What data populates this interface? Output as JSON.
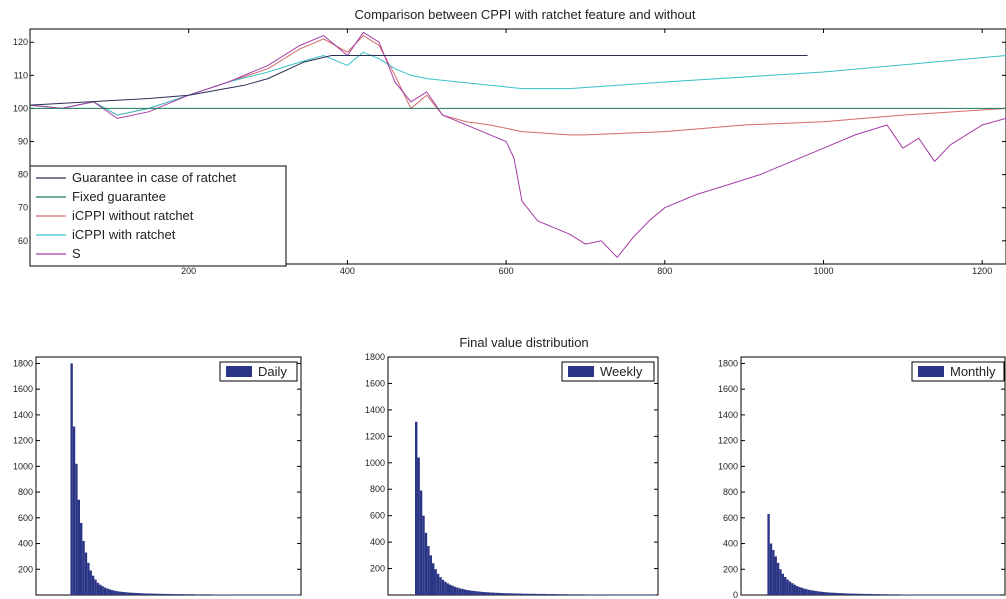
{
  "chart_data": [
    {
      "id": "cppi",
      "type": "line",
      "title": "Comparison between CPPI with ratchet feature and without",
      "xlabel": "",
      "ylabel": "",
      "xlim": [
        0,
        1230
      ],
      "ylim": [
        53,
        124
      ],
      "xticks": [
        200,
        400,
        600,
        800,
        1000,
        1200
      ],
      "yticks": [
        60,
        70,
        80,
        90,
        100,
        110,
        120
      ],
      "grid": false,
      "legend_position": "bottom-left",
      "series": [
        {
          "name": "Guarantee in case of ratchet",
          "color": "#2a2f55",
          "x": [
            0,
            150,
            200,
            270,
            300,
            345,
            380,
            400,
            430,
            980
          ],
          "y": [
            101,
            103,
            104,
            107,
            109,
            114,
            116,
            116,
            116,
            116
          ]
        },
        {
          "name": "Fixed guarantee",
          "color": "#1f7a5a",
          "x": [
            0,
            1230
          ],
          "y": [
            100,
            100
          ]
        },
        {
          "name": "iCPPI without ratchet",
          "color": "#d46a6a",
          "x": [
            0,
            40,
            80,
            110,
            150,
            200,
            250,
            300,
            340,
            370,
            400,
            420,
            440,
            460,
            480,
            500,
            520,
            550,
            580,
            620,
            680,
            700,
            800,
            900,
            1000,
            1100,
            1230
          ],
          "y": [
            101,
            100,
            102,
            98,
            100,
            104,
            108,
            112,
            118,
            121,
            117,
            122,
            119,
            110,
            100,
            104,
            98,
            96,
            95,
            93,
            92,
            92,
            93,
            95,
            96,
            98,
            100
          ]
        },
        {
          "name": "iCPPI with ratchet",
          "color": "#39c2c8",
          "x": [
            0,
            40,
            80,
            110,
            150,
            200,
            250,
            300,
            340,
            370,
            400,
            420,
            440,
            460,
            480,
            500,
            540,
            580,
            620,
            680,
            800,
            1000,
            1230
          ],
          "y": [
            101,
            100,
            102,
            98,
            100,
            104,
            108,
            111,
            114,
            116,
            113,
            117,
            115,
            112,
            110,
            109,
            108,
            107,
            106,
            106,
            108,
            111,
            116
          ]
        },
        {
          "name": "S",
          "color": "#a63ea6",
          "x": [
            0,
            40,
            80,
            110,
            150,
            200,
            250,
            300,
            340,
            370,
            400,
            420,
            440,
            460,
            480,
            500,
            520,
            540,
            560,
            580,
            600,
            610,
            620,
            640,
            660,
            680,
            700,
            720,
            740,
            760,
            780,
            800,
            840,
            880,
            920,
            960,
            1000,
            1040,
            1080,
            1100,
            1120,
            1140,
            1160,
            1180,
            1200,
            1230
          ],
          "y": [
            101,
            100,
            102,
            97,
            99,
            104,
            108,
            113,
            119,
            122,
            116,
            123,
            120,
            108,
            102,
            105,
            98,
            96,
            94,
            92,
            90,
            85,
            72,
            66,
            64,
            62,
            59,
            60,
            55,
            61,
            66,
            70,
            74,
            77,
            80,
            84,
            88,
            92,
            95,
            88,
            91,
            84,
            89,
            92,
            95,
            97
          ]
        }
      ]
    },
    {
      "id": "daily",
      "type": "bar",
      "legend": "Daily",
      "legend_color": "#2b3585",
      "legend_position": "top-right",
      "xlim": [
        0,
        1
      ],
      "ylim": [
        0,
        1850
      ],
      "yticks": [
        200,
        400,
        600,
        800,
        1000,
        1200,
        1400,
        1600,
        1800
      ],
      "bins_start": 0.13,
      "bin_width": 0.009,
      "values": [
        1800,
        1310,
        1020,
        740,
        560,
        420,
        330,
        250,
        190,
        150,
        120,
        95,
        80,
        68,
        58,
        50,
        44,
        38,
        34,
        30,
        27,
        25,
        23,
        21,
        19,
        18,
        17,
        16,
        15,
        14,
        13,
        12,
        12,
        11,
        11,
        10,
        10,
        9,
        9,
        9,
        8,
        8,
        8,
        7,
        7,
        7,
        7,
        6,
        6,
        6,
        6,
        6,
        5,
        5,
        5,
        5,
        5,
        5,
        5,
        4,
        4,
        4,
        4,
        4,
        4,
        4,
        4,
        4,
        4,
        3,
        3,
        3,
        3,
        3,
        3,
        3,
        3,
        3,
        3,
        3,
        3,
        3,
        3,
        3,
        3,
        3,
        3,
        3,
        3,
        3,
        3,
        3,
        3,
        3,
        3,
        3
      ]
    },
    {
      "id": "weekly",
      "type": "bar",
      "title": "Final value distribution",
      "legend": "Weekly",
      "legend_color": "#2b3585",
      "legend_position": "top-right",
      "xlim": [
        0,
        1
      ],
      "ylim": [
        0,
        1800
      ],
      "yticks": [
        200,
        400,
        600,
        800,
        1000,
        1200,
        1400,
        1600,
        1800
      ],
      "bins_start": 0.1,
      "bin_width": 0.009,
      "values": [
        1310,
        1040,
        790,
        600,
        470,
        370,
        300,
        240,
        195,
        160,
        135,
        115,
        100,
        88,
        78,
        70,
        62,
        56,
        50,
        46,
        42,
        38,
        35,
        32,
        30,
        28,
        26,
        24,
        22,
        21,
        20,
        19,
        18,
        17,
        16,
        15,
        14,
        14,
        13,
        13,
        12,
        12,
        11,
        11,
        10,
        10,
        10,
        9,
        9,
        9,
        8,
        8,
        8,
        8,
        7,
        7,
        7,
        7,
        6,
        6,
        6,
        6,
        6,
        5,
        5,
        5,
        5,
        5,
        5,
        5,
        4,
        4,
        4,
        4,
        4,
        4,
        4,
        4,
        4,
        4,
        4,
        3,
        3,
        3,
        3,
        3,
        3,
        3,
        3,
        3,
        3,
        3,
        3,
        3,
        3,
        3,
        3,
        3,
        3
      ]
    },
    {
      "id": "monthly",
      "type": "bar",
      "legend": "Monthly",
      "legend_color": "#2b3585",
      "legend_position": "top-right",
      "xlim": [
        0,
        1
      ],
      "ylim": [
        0,
        1850
      ],
      "yticks": [
        0,
        200,
        400,
        600,
        800,
        1000,
        1200,
        1400,
        1600,
        1800
      ],
      "bins_start": 0.1,
      "bin_width": 0.009,
      "values": [
        630,
        400,
        350,
        300,
        250,
        200,
        165,
        140,
        120,
        105,
        92,
        80,
        70,
        62,
        56,
        50,
        45,
        41,
        37,
        34,
        31,
        28,
        26,
        24,
        22,
        20,
        19,
        18,
        17,
        16,
        15,
        14,
        13,
        12,
        12,
        11,
        11,
        10,
        10,
        9,
        9,
        8,
        8,
        8,
        7,
        7,
        7,
        6,
        6,
        6,
        6,
        5,
        5,
        5,
        5,
        5,
        4,
        4,
        4,
        4,
        4,
        4,
        4,
        3,
        3,
        3,
        3,
        3,
        3,
        3,
        3,
        3,
        3,
        3,
        3,
        3,
        3,
        3,
        3,
        3,
        3,
        3,
        3,
        3,
        3,
        3,
        3,
        3,
        3,
        3,
        3,
        3,
        3,
        3,
        3,
        3,
        3,
        3
      ]
    }
  ]
}
